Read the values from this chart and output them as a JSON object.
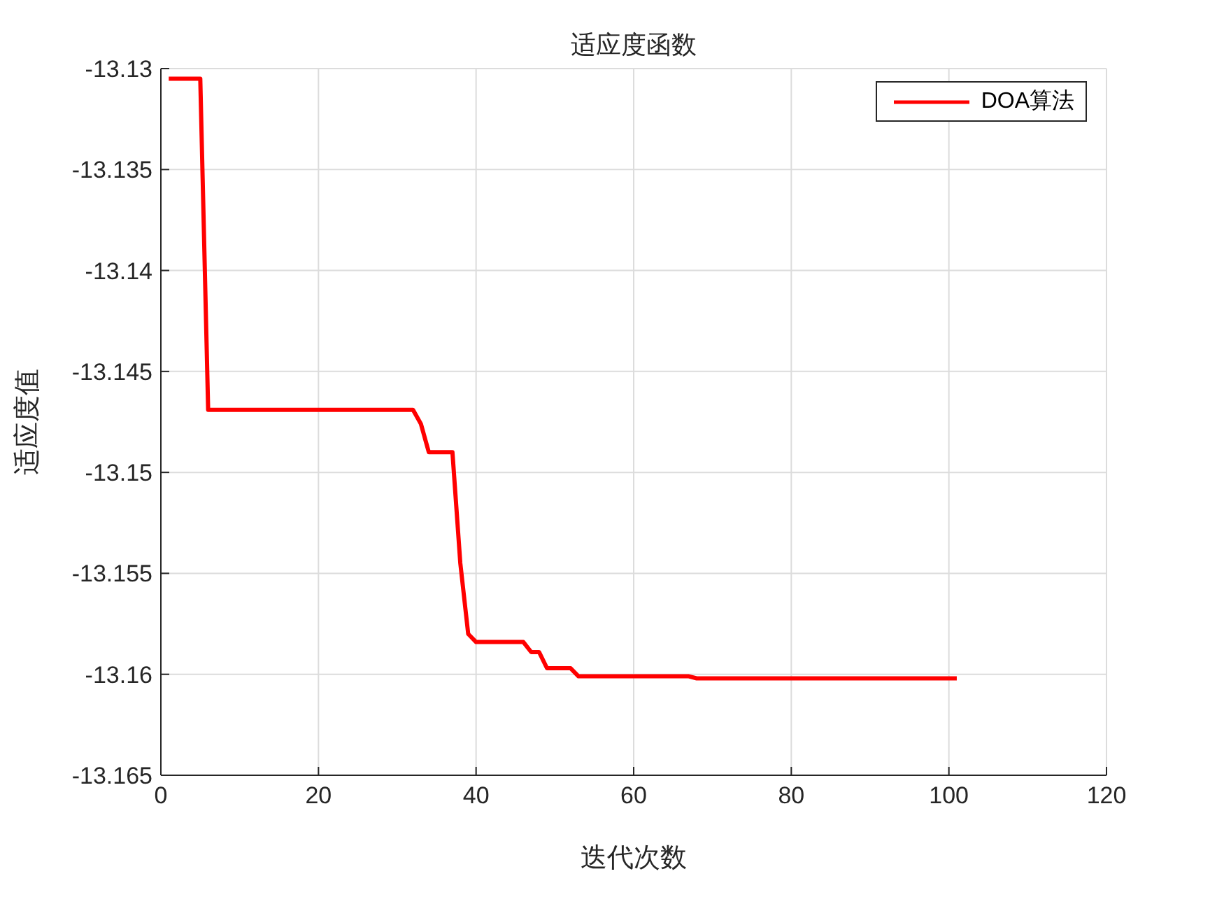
{
  "chart_data": {
    "type": "line",
    "title": "适应度函数",
    "xlabel": "迭代次数",
    "ylabel": "适应度值",
    "xlim": [
      0,
      120
    ],
    "xticks": [
      0,
      20,
      40,
      60,
      80,
      100,
      120
    ],
    "ylim": [
      -13.165,
      -13.13
    ],
    "yticks": [
      -13.165,
      -13.16,
      -13.155,
      -13.15,
      -13.145,
      -13.14,
      -13.135,
      -13.13
    ],
    "grid": true,
    "legend": "top right",
    "marker": "none",
    "line_style": "solid",
    "series": [
      {
        "name": "DOA算法",
        "color": "#ff0000",
        "x": [
          1,
          5,
          6,
          32,
          33,
          34,
          37,
          38,
          39,
          40,
          46,
          47,
          48,
          49,
          52,
          53,
          67,
          68,
          101
        ],
        "values": [
          -13.1305,
          -13.1305,
          -13.1469,
          -13.1469,
          -13.1476,
          -13.149,
          -13.149,
          -13.1545,
          -13.158,
          -13.1584,
          -13.1584,
          -13.1589,
          -13.1589,
          -13.1597,
          -13.1597,
          -13.1601,
          -13.1601,
          -13.1602,
          -13.1602
        ]
      }
    ]
  }
}
